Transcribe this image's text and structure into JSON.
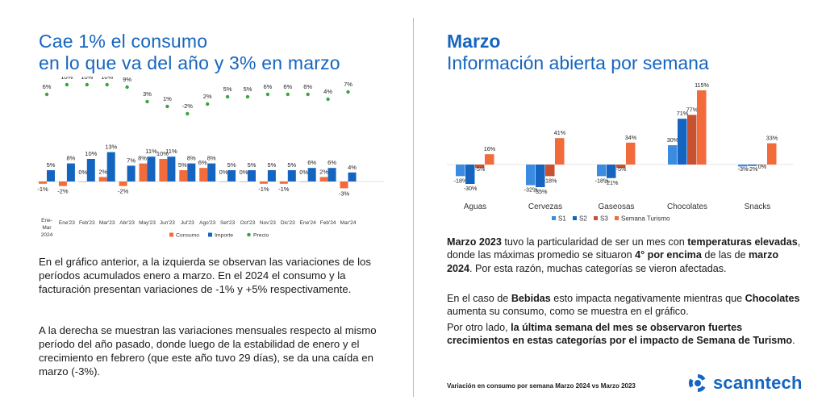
{
  "left": {
    "title_line1": "Cae 1% el consumo",
    "title_line2": "en lo que va del año y 3% en marzo",
    "paragraph1": "En el gráfico anterior, a la izquierda se observan las variaciones de los períodos acumulados enero a marzo. En el 2024 el consumo y la facturación presentan variaciones de -1% y +5% respectivamente.",
    "paragraph2": "A la derecha se muestran las variaciones mensuales respecto al mismo período del año pasado, donde luego de la estabilidad de enero y el crecimiento en febrero (que este año tuvo 29 días), se da una caída en marzo (-3%)."
  },
  "right": {
    "title_bold": "Marzo",
    "title_line2": "Información abierta por semana",
    "p1": [
      {
        "t": "Marzo 2023",
        "b": true
      },
      {
        "t": " tuvo la particularidad de ser un mes con ",
        "b": false
      },
      {
        "t": "temperaturas elevadas",
        "b": true
      },
      {
        "t": ", donde las máximas promedio se situaron ",
        "b": false
      },
      {
        "t": "4° por encima",
        "b": true
      },
      {
        "t": " de las de ",
        "b": false
      },
      {
        "t": "marzo 2024",
        "b": true
      },
      {
        "t": ". Por esta razón, muchas categorías se vieron afectadas.",
        "b": false
      }
    ],
    "p2": [
      {
        "t": "En el caso de ",
        "b": false
      },
      {
        "t": "Bebidas",
        "b": true
      },
      {
        "t": " esto impacta negativamente mientras que ",
        "b": false
      },
      {
        "t": "Chocolates",
        "b": true
      },
      {
        "t": " aumenta su consumo, como se muestra en el gráfico.",
        "b": false
      }
    ],
    "p3": [
      {
        "t": "Por otro lado, ",
        "b": false
      },
      {
        "t": "la última semana del mes se observaron fuertes crecimientos en estas categorías por el impacto de Semana de Turismo",
        "b": true
      },
      {
        "t": ".",
        "b": false
      }
    ],
    "footnote": "Variación en consumo por semana Marzo 2024 vs Marzo 2023",
    "logo_text": "scanntech"
  },
  "colors": {
    "consumo": "#f26b3a",
    "importe": "#1565c0",
    "precio": "#3aa53f",
    "s1": "#3b8be0",
    "s2": "#1565c0",
    "s3": "#c8512f",
    "turismo": "#f26b3a",
    "title": "#1565c0"
  },
  "chart_data": [
    {
      "type": "bar",
      "title": "",
      "categories": [
        "Ene-Mar 2024",
        "Ene'23",
        "Feb'23",
        "Mar'23",
        "Abr'23",
        "May'23",
        "Jun'23",
        "Jul'23",
        "Ago'23",
        "Set'23",
        "Oct'23",
        "Nov'23",
        "Dic'23",
        "Ene'24",
        "Feb'24",
        "Mar'24"
      ],
      "series": [
        {
          "name": "Consumo",
          "values": [
            -1,
            -2,
            0,
            2,
            -2,
            8,
            10,
            5,
            6,
            0,
            0,
            -1,
            -1,
            0,
            2,
            -3
          ]
        },
        {
          "name": "Importe",
          "values": [
            5,
            8,
            10,
            13,
            7,
            11,
            11,
            8,
            8,
            5,
            5,
            5,
            5,
            6,
            6,
            4
          ]
        },
        {
          "name": "Precio",
          "values": [
            6,
            10,
            10,
            10,
            9,
            3,
            1,
            -2,
            2,
            5,
            5,
            6,
            6,
            6,
            4,
            7
          ]
        }
      ],
      "legend": [
        "Consumo",
        "Importe",
        "Precio"
      ],
      "label_format": "%"
    },
    {
      "type": "bar",
      "title": "Variación en consumo por semana Marzo 2024 vs Marzo 2023",
      "categories": [
        "Aguas",
        "Cervezas",
        "Gaseosas",
        "Chocolates",
        "Snacks"
      ],
      "series": [
        {
          "name": "S1",
          "values": [
            -18,
            -32,
            -18,
            30,
            -3
          ]
        },
        {
          "name": "S2",
          "values": [
            -30,
            -35,
            -21,
            71,
            -2
          ]
        },
        {
          "name": "S3",
          "values": [
            -5,
            -18,
            -5,
            77,
            0
          ]
        },
        {
          "name": "Semana Turismo",
          "values": [
            16,
            41,
            34,
            115,
            33
          ]
        }
      ],
      "legend": [
        "S1",
        "S2",
        "S3",
        "Semana Turismo"
      ],
      "label_format": "%"
    }
  ]
}
